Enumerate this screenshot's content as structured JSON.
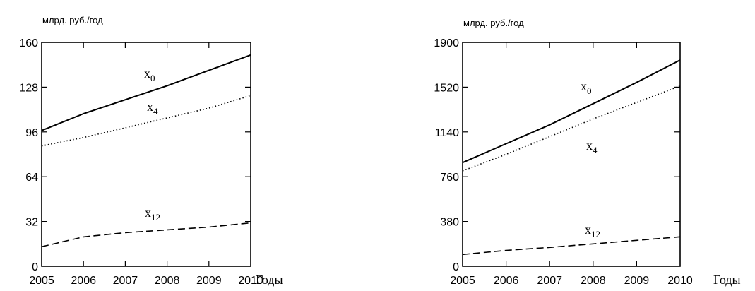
{
  "chart_data": [
    {
      "type": "line",
      "ylabel": "млрд. руб./год",
      "xlabel": "Годы",
      "x": [
        2005,
        2006,
        2007,
        2008,
        2009,
        2010
      ],
      "x_tick_labels": [
        "2005",
        "2006",
        "2007",
        "2008",
        "2009",
        "2010"
      ],
      "y_tick_labels": [
        "0",
        "32",
        "64",
        "96",
        "128",
        "160"
      ],
      "xlim": [
        2005,
        2010
      ],
      "ylim": [
        0,
        160
      ],
      "grid": false,
      "series": [
        {
          "name": "x",
          "subscript": "0",
          "style": "solid",
          "values": [
            97,
            109,
            119,
            129,
            140,
            151
          ]
        },
        {
          "name": "x",
          "subscript": "4",
          "style": "dotted",
          "values": [
            86,
            92,
            99,
            106,
            113,
            122
          ]
        },
        {
          "name": "x",
          "subscript": "12",
          "style": "dashed",
          "values": [
            14,
            21,
            24,
            26,
            28,
            31
          ]
        }
      ]
    },
    {
      "type": "line",
      "ylabel": "млрд. руб./год",
      "xlabel": "Годы",
      "x": [
        2005,
        2006,
        2007,
        2008,
        2009,
        2010
      ],
      "x_tick_labels": [
        "2005",
        "2006",
        "2007",
        "2008",
        "2009",
        "2010"
      ],
      "y_tick_labels": [
        "0",
        "380",
        "760",
        "1140",
        "1520",
        "1900"
      ],
      "xlim": [
        2005,
        2010
      ],
      "ylim": [
        0,
        1900
      ],
      "grid": false,
      "series": [
        {
          "name": "x",
          "subscript": "0",
          "style": "solid",
          "values": [
            880,
            1040,
            1200,
            1380,
            1560,
            1750
          ]
        },
        {
          "name": "x",
          "subscript": "4",
          "style": "dotted",
          "values": [
            810,
            950,
            1100,
            1250,
            1390,
            1530
          ]
        },
        {
          "name": "x",
          "subscript": "12",
          "style": "dashed",
          "values": [
            100,
            135,
            160,
            190,
            220,
            250
          ]
        }
      ]
    }
  ]
}
